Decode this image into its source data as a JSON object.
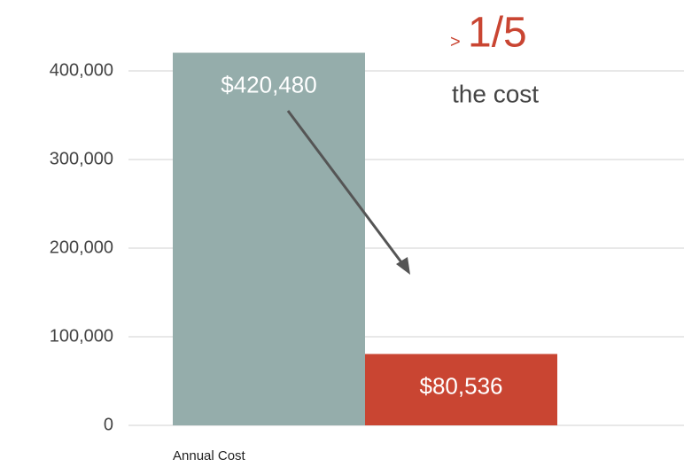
{
  "chart_data": {
    "type": "bar",
    "categories": [
      "Annual Cost"
    ],
    "series": [
      {
        "color": "#95adab",
        "values": [
          420480
        ],
        "value_labels": [
          "$420,480"
        ]
      },
      {
        "color": "#c94532",
        "values": [
          80536
        ],
        "value_labels": [
          "$80,536"
        ]
      }
    ],
    "ylim": [
      0,
      450000
    ],
    "yticks": [
      0,
      {
        "value": 100000,
        "label": "100,000"
      },
      {
        "value": 200000,
        "label": "200,000"
      },
      {
        "value": 300000,
        "label": "300,000"
      },
      {
        "value": 400000,
        "label": "400,000"
      }
    ],
    "grid": true,
    "annotations": [
      ">",
      "1/5",
      "the cost"
    ]
  }
}
